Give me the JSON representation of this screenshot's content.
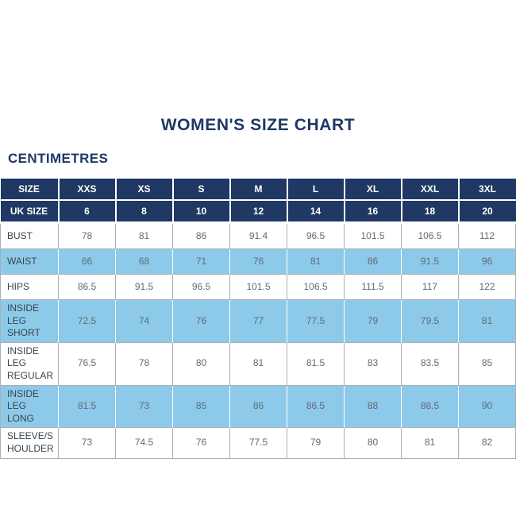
{
  "header": {
    "title": "WOMEN'S SIZE CHART",
    "unit_label": "CENTIMETRES"
  },
  "colors": {
    "navy": "#1F3864",
    "light_blue": "#8DCAE9",
    "grid_gray": "#A9AFB5",
    "label_text": "#3A454F",
    "value_text": "#5F6B76",
    "header_text": "#FFFFFF"
  },
  "chart_data": {
    "type": "table",
    "title": "WOMEN'S SIZE CHART",
    "unit": "CENTIMETRES",
    "size_header": {
      "label": "SIZE",
      "values": [
        "XXS",
        "XS",
        "S",
        "M",
        "L",
        "XL",
        "XXL",
        "3XL"
      ]
    },
    "uk_size_header": {
      "label": "UK SIZE",
      "values": [
        "6",
        "8",
        "10",
        "12",
        "14",
        "16",
        "18",
        "20"
      ]
    },
    "measurement_rows": [
      {
        "label": "BUST",
        "values": [
          "78",
          "81",
          "86",
          "91.4",
          "96.5",
          "101.5",
          "106.5",
          "112"
        ],
        "highlighted": false
      },
      {
        "label": "WAIST",
        "values": [
          "66",
          "68",
          "71",
          "76",
          "81",
          "86",
          "91.5",
          "96"
        ],
        "highlighted": true
      },
      {
        "label": "HIPS",
        "values": [
          "86.5",
          "91.5",
          "96.5",
          "101.5",
          "106.5",
          "111.5",
          "117",
          "122"
        ],
        "highlighted": false
      },
      {
        "label": "INSIDE LEG SHORT",
        "values": [
          "72.5",
          "74",
          "76",
          "77",
          "77.5",
          "79",
          "79.5",
          "81"
        ],
        "highlighted": true
      },
      {
        "label": "INSIDE LEG REGULAR",
        "values": [
          "76.5",
          "78",
          "80",
          "81",
          "81.5",
          "83",
          "83.5",
          "85"
        ],
        "highlighted": false
      },
      {
        "label": "INSIDE LEG LONG",
        "values": [
          "81.5",
          "73",
          "85",
          "86",
          "86.5",
          "88",
          "88.5",
          "90"
        ],
        "highlighted": true
      },
      {
        "label": "SLEEVE/SHOULDER",
        "values": [
          "73",
          "74.5",
          "76",
          "77.5",
          "79",
          "80",
          "81",
          "82"
        ],
        "highlighted": false
      }
    ]
  }
}
